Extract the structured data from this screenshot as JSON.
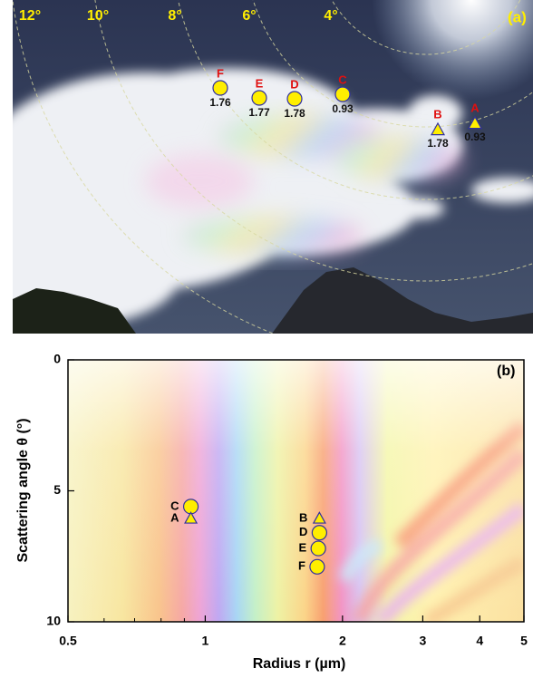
{
  "photo": {
    "label": "(a)",
    "angle_labels": [
      "12°",
      "10°",
      "8°",
      "6°",
      "4°"
    ],
    "markers": [
      {
        "letter": "F",
        "value": 1.76,
        "marker": "circle"
      },
      {
        "letter": "E",
        "value": 1.77,
        "marker": "circle"
      },
      {
        "letter": "D",
        "value": 1.78,
        "marker": "circle"
      },
      {
        "letter": "C",
        "value": 0.93,
        "marker": "circle"
      },
      {
        "letter": "B",
        "value": 1.78,
        "marker": "triangle"
      },
      {
        "letter": "A",
        "value": 0.93,
        "marker": "triangle"
      }
    ]
  },
  "chart_data": {
    "type": "scatter",
    "label": "(b)",
    "x_label": "Radius r (µm)",
    "y_label": "Scattering angle θ (°)",
    "xlog": true,
    "xlim": [
      0.5,
      5
    ],
    "xticks": [
      0.5,
      1,
      2,
      3,
      4,
      5
    ],
    "xminor_ticks": [
      0.6,
      0.7,
      0.8,
      0.9
    ],
    "ylim": [
      0,
      10
    ],
    "y_inverted": true,
    "yticks": [
      0,
      5,
      10
    ],
    "marker_color": "#ffee00",
    "marker_edge": "#3030a0",
    "points": [
      {
        "label": "C",
        "x": 0.93,
        "y": 5.6,
        "marker": "circle"
      },
      {
        "label": "A",
        "x": 0.93,
        "y": 6.05,
        "marker": "triangle"
      },
      {
        "label": "B",
        "x": 1.78,
        "y": 6.05,
        "marker": "triangle"
      },
      {
        "label": "D",
        "x": 1.78,
        "y": 6.6,
        "marker": "circle"
      },
      {
        "label": "E",
        "x": 1.77,
        "y": 7.2,
        "marker": "circle"
      },
      {
        "label": "F",
        "x": 1.76,
        "y": 7.9,
        "marker": "circle"
      }
    ]
  }
}
